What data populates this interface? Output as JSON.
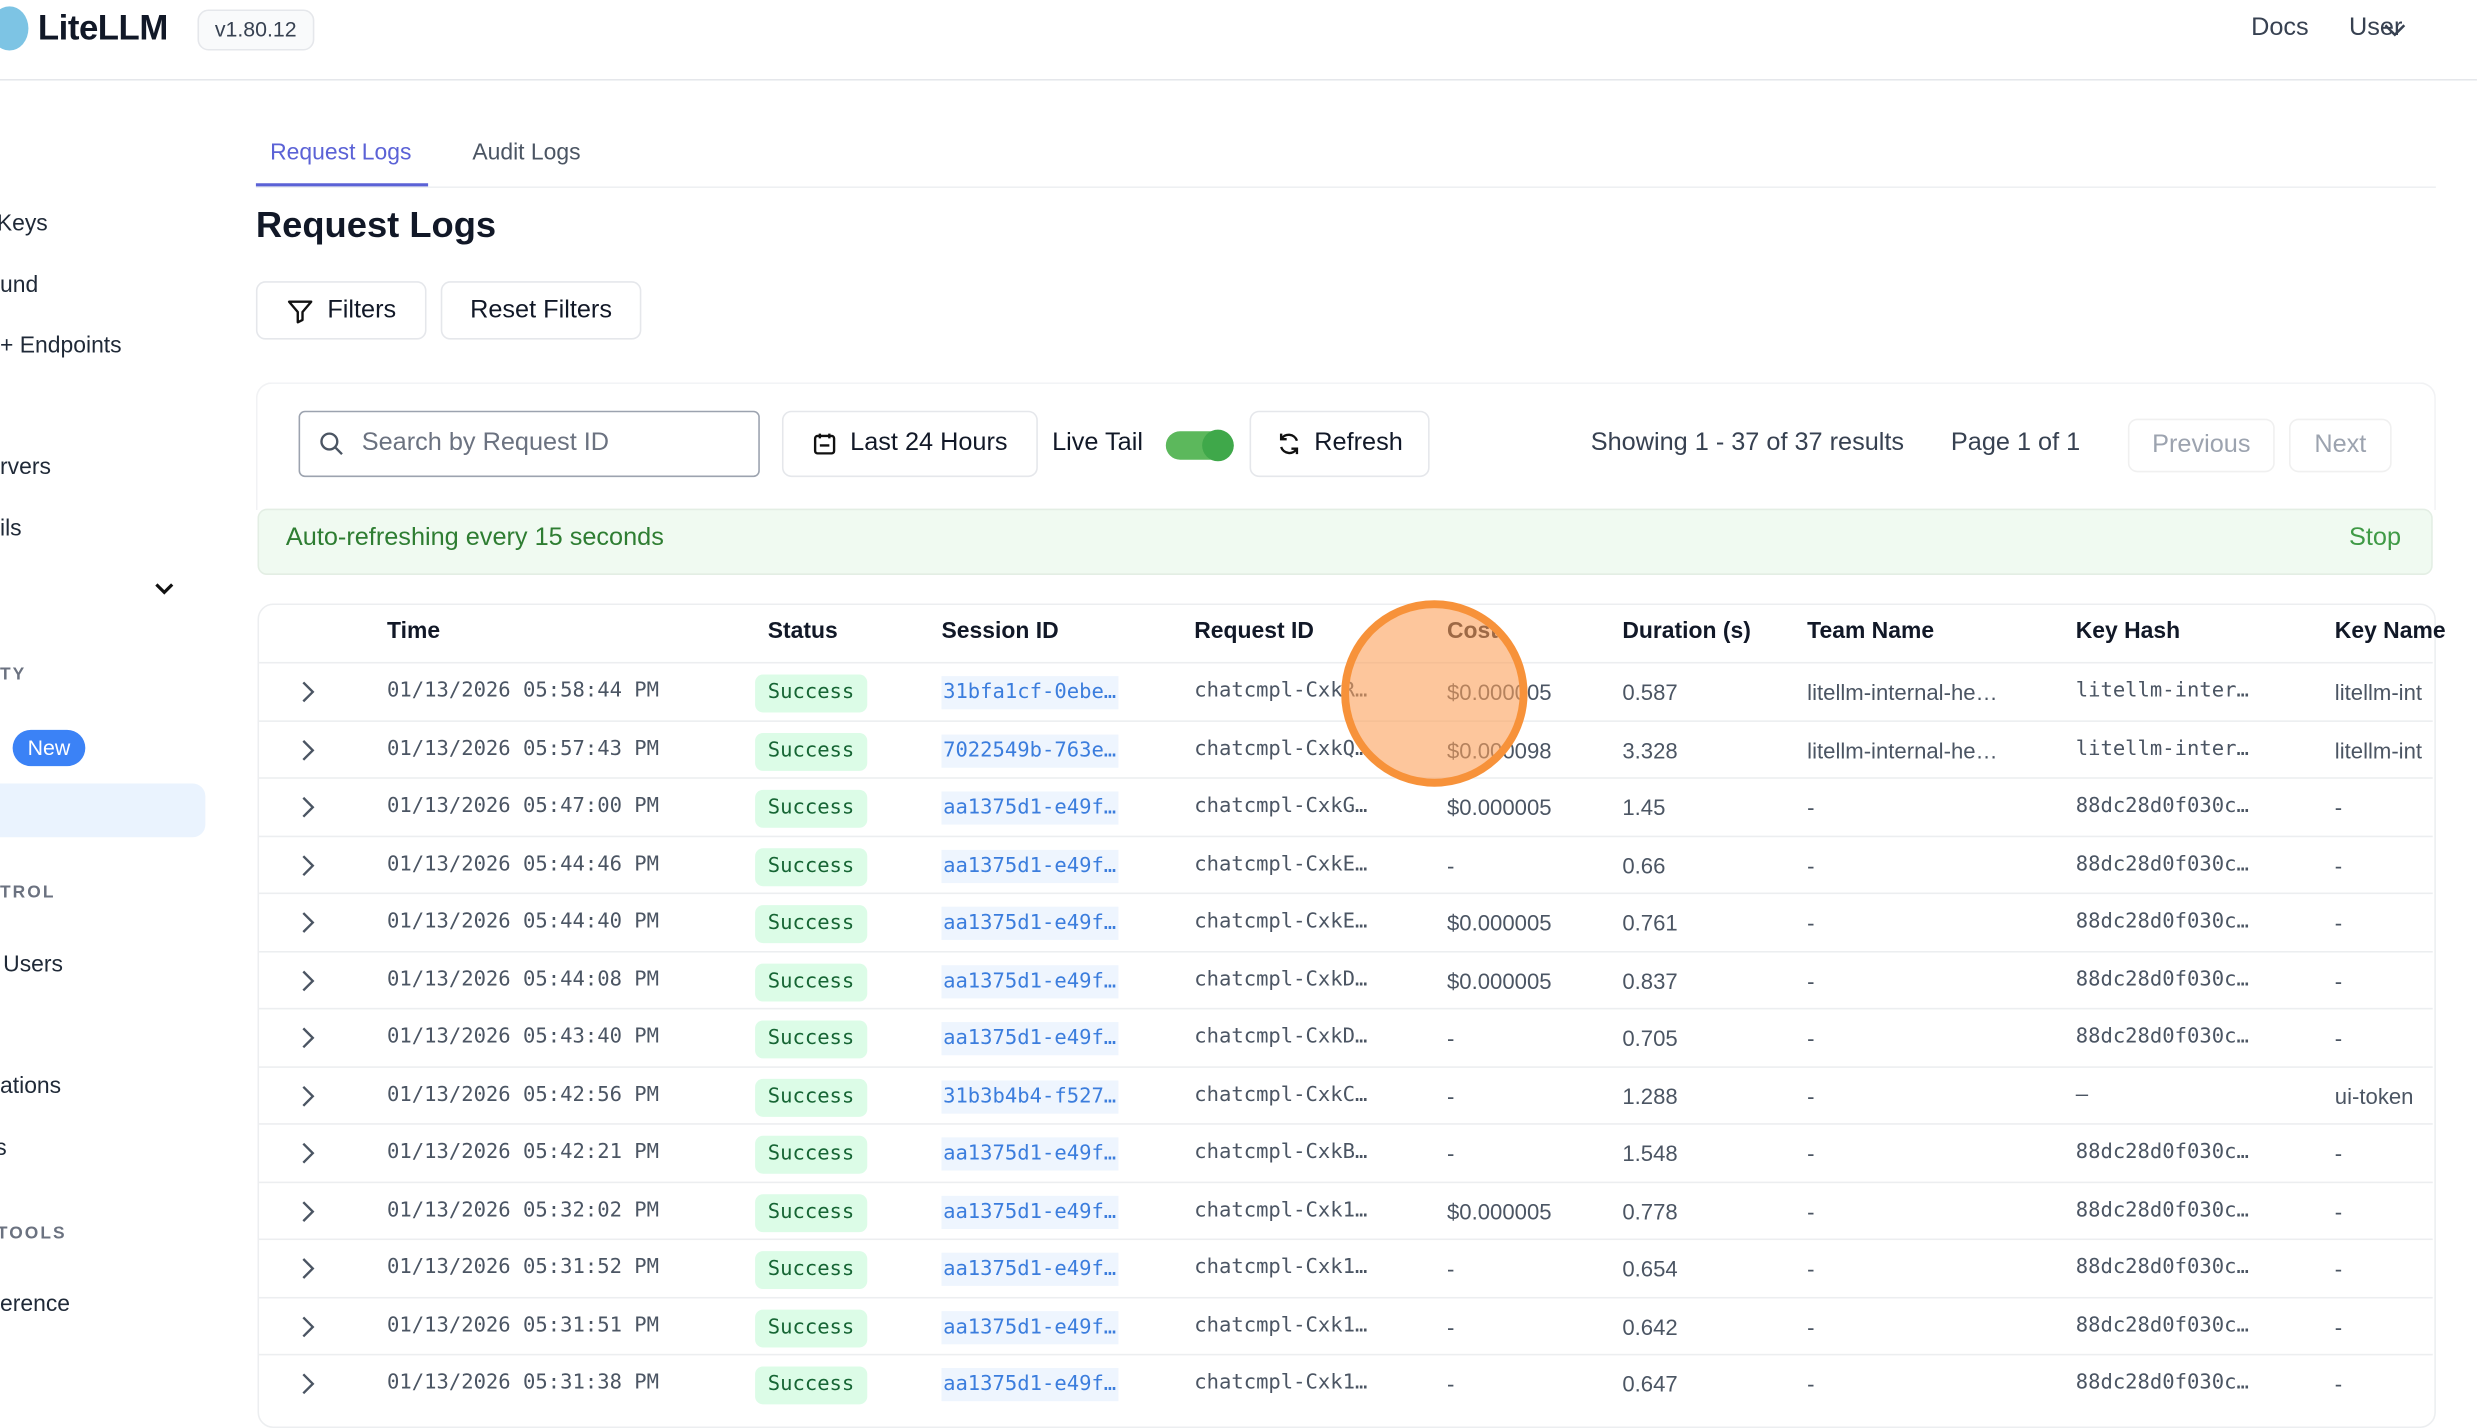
{
  "header": {
    "brand": "LiteLLM",
    "version": "v1.80.12",
    "docs": "Docs",
    "user": "User"
  },
  "sidebar": {
    "items": [
      "Keys",
      "und",
      "+ Endpoints",
      "rvers",
      "ils",
      "Users",
      "ations",
      "s",
      "erence"
    ],
    "sections": [
      "TY",
      "TROL",
      "TOOLS"
    ],
    "new_badge": "New"
  },
  "tabs": [
    {
      "label": "Request Logs",
      "active": true
    },
    {
      "label": "Audit Logs",
      "active": false
    }
  ],
  "page_title": "Request Logs",
  "toolbar": {
    "filters": "Filters",
    "reset_filters": "Reset Filters",
    "search_placeholder": "Search by Request ID",
    "time_range": "Last 24 Hours",
    "live_tail": "Live Tail",
    "live_tail_on": true,
    "refresh": "Refresh",
    "showing": "Showing 1 - 37 of 37 results",
    "page": "Page 1 of 1",
    "previous": "Previous",
    "next": "Next"
  },
  "banner": {
    "text": "Auto-refreshing every 15 seconds",
    "stop": "Stop"
  },
  "table": {
    "columns": [
      "Time",
      "Status",
      "Session ID",
      "Request ID",
      "Cost",
      "Duration (s)",
      "Team Name",
      "Key Hash",
      "Key Name"
    ],
    "rows": [
      [
        "01/13/2026 05:58:44 PM",
        "Success",
        "31bfa1cf-0ebe…",
        "chatcmpl-CxkR…",
        "$0.000005",
        "0.587",
        "litellm-internal-he…",
        "litellm-inter…",
        "litellm-int"
      ],
      [
        "01/13/2026 05:57:43 PM",
        "Success",
        "7022549b-763e…",
        "chatcmpl-CxkQ…",
        "$0.000098",
        "3.328",
        "litellm-internal-he…",
        "litellm-inter…",
        "litellm-int"
      ],
      [
        "01/13/2026 05:47:00 PM",
        "Success",
        "aa1375d1-e49f…",
        "chatcmpl-CxkG…",
        "$0.000005",
        "1.45",
        "-",
        "88dc28d0f030c…",
        "-"
      ],
      [
        "01/13/2026 05:44:46 PM",
        "Success",
        "aa1375d1-e49f…",
        "chatcmpl-CxkE…",
        "-",
        "0.66",
        "-",
        "88dc28d0f030c…",
        "-"
      ],
      [
        "01/13/2026 05:44:40 PM",
        "Success",
        "aa1375d1-e49f…",
        "chatcmpl-CxkE…",
        "$0.000005",
        "0.761",
        "-",
        "88dc28d0f030c…",
        "-"
      ],
      [
        "01/13/2026 05:44:08 PM",
        "Success",
        "aa1375d1-e49f…",
        "chatcmpl-CxkD…",
        "$0.000005",
        "0.837",
        "-",
        "88dc28d0f030c…",
        "-"
      ],
      [
        "01/13/2026 05:43:40 PM",
        "Success",
        "aa1375d1-e49f…",
        "chatcmpl-CxkD…",
        "-",
        "0.705",
        "-",
        "88dc28d0f030c…",
        "-"
      ],
      [
        "01/13/2026 05:42:56 PM",
        "Success",
        "31b3b4b4-f527…",
        "chatcmpl-CxkC…",
        "-",
        "1.288",
        "-",
        "–",
        "ui-token"
      ],
      [
        "01/13/2026 05:42:21 PM",
        "Success",
        "aa1375d1-e49f…",
        "chatcmpl-CxkB…",
        "-",
        "1.548",
        "-",
        "88dc28d0f030c…",
        "-"
      ],
      [
        "01/13/2026 05:32:02 PM",
        "Success",
        "aa1375d1-e49f…",
        "chatcmpl-Cxk1…",
        "$0.000005",
        "0.778",
        "-",
        "88dc28d0f030c…",
        "-"
      ],
      [
        "01/13/2026 05:31:52 PM",
        "Success",
        "aa1375d1-e49f…",
        "chatcmpl-Cxk1…",
        "-",
        "0.654",
        "-",
        "88dc28d0f030c…",
        "-"
      ],
      [
        "01/13/2026 05:31:51 PM",
        "Success",
        "aa1375d1-e49f…",
        "chatcmpl-Cxk1…",
        "-",
        "0.642",
        "-",
        "88dc28d0f030c…",
        "-"
      ],
      [
        "01/13/2026 05:31:38 PM",
        "Success",
        "aa1375d1-e49f…",
        "chatcmpl-Cxk1…",
        "-",
        "0.647",
        "-",
        "88dc28d0f030c…",
        "-"
      ]
    ]
  },
  "colors": {
    "accent": "#5b62d6",
    "success_bg": "#dcfce7",
    "success_text": "#166534",
    "toggle": "#5cb85c",
    "cursor": "#f7923a"
  }
}
